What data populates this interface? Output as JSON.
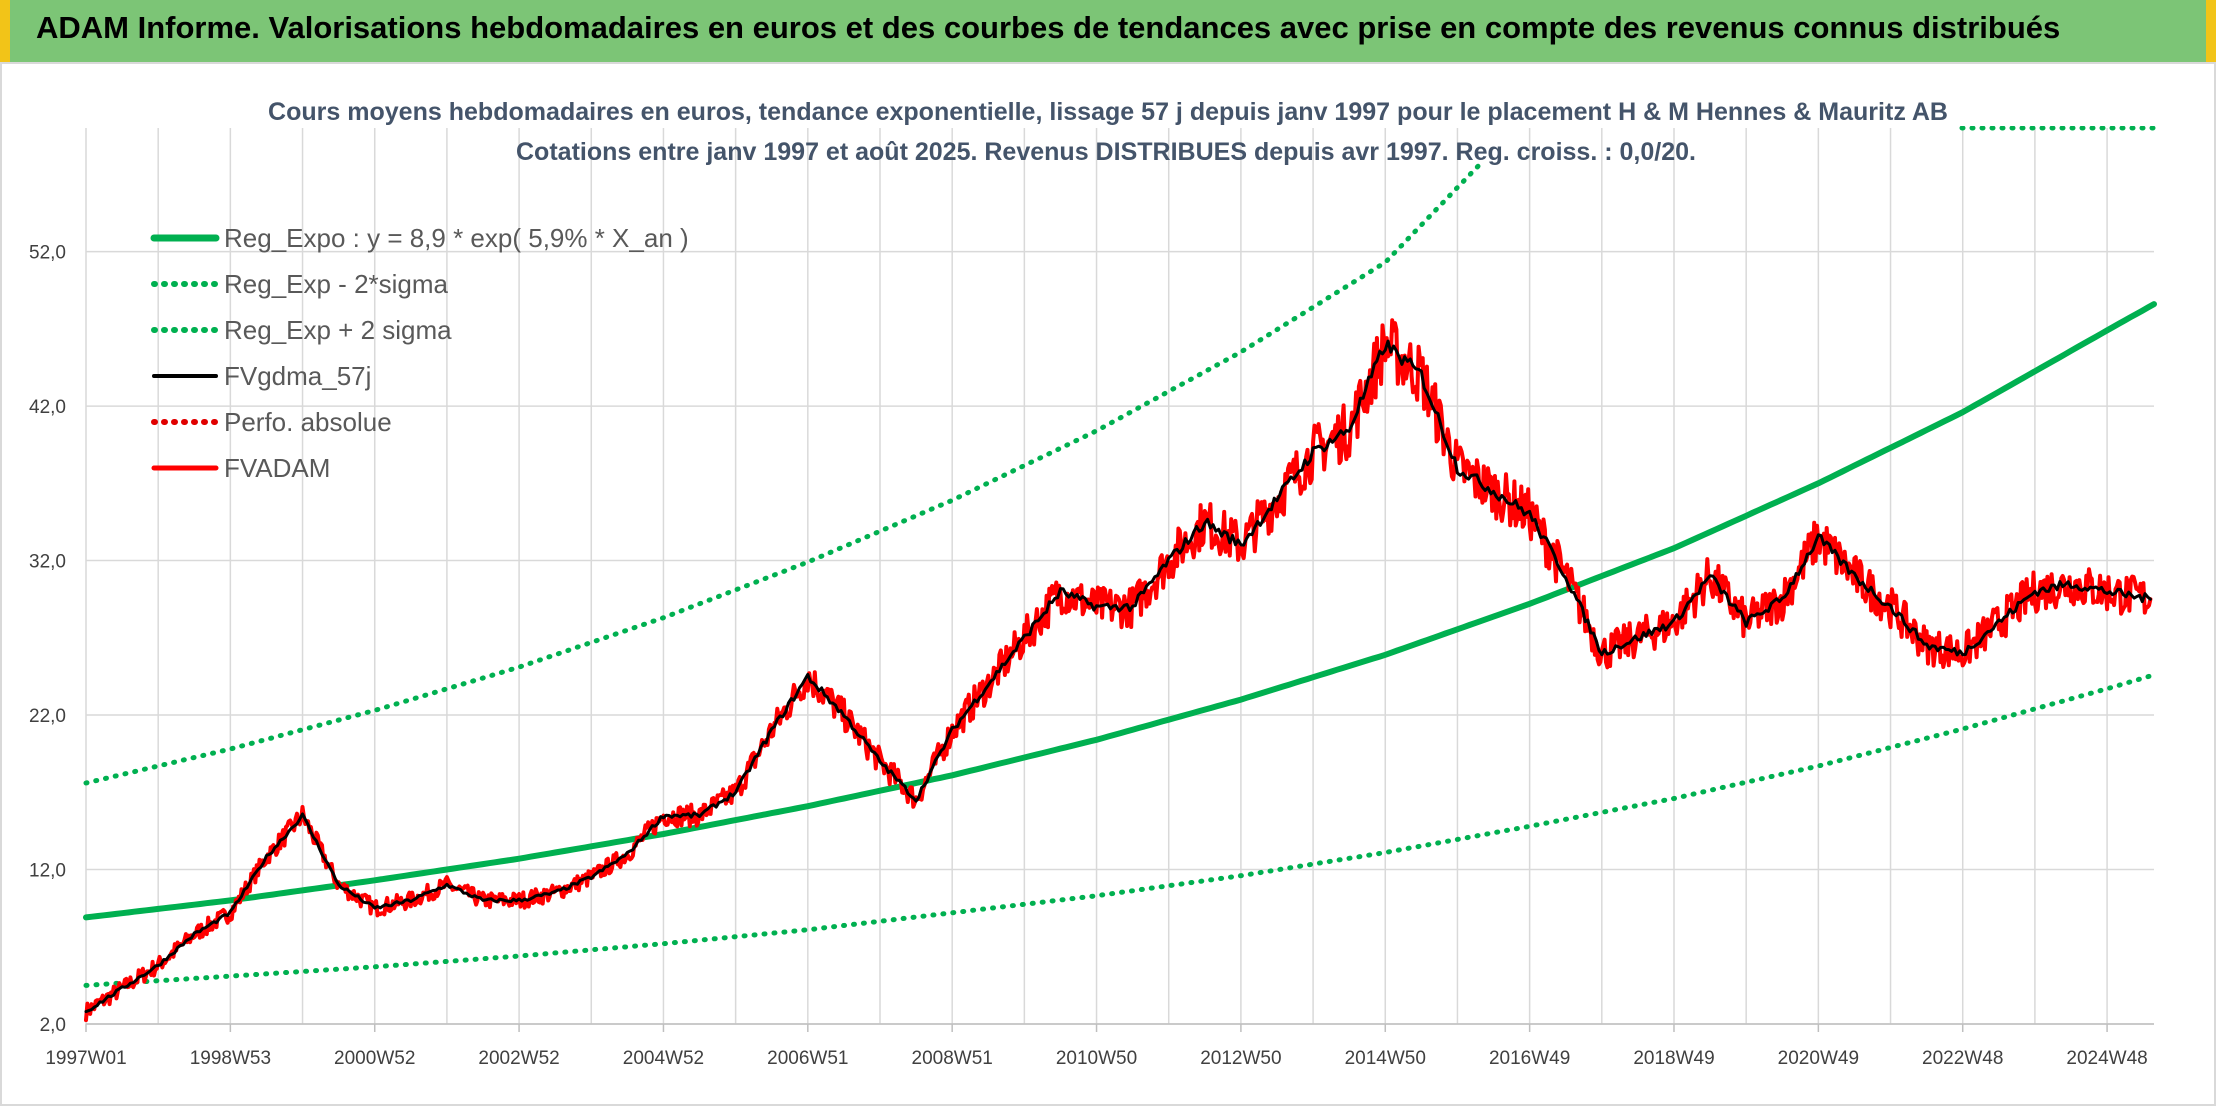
{
  "header": {
    "title": "ADAM Informe. Valorisations hebdomadaires en euros et des courbes de tendances avec prise en compte des revenus connus distribués",
    "background_color": "#7cc576",
    "edge_color": "#f2c418"
  },
  "chart_data": {
    "type": "line",
    "title": "Cours moyens hebdomadaires en euros, tendance exponentielle, lissage 57 j depuis janv 1997 pour le placement H & M Hennes & Mauritz AB",
    "subtitle": "Cotations entre janv 1997 et août 2025. Revenus DISTRIBUES depuis avr 1997. Reg. croiss. : 0,0/20.",
    "xlabel": "",
    "ylabel": "",
    "x_range": [
      1997.0,
      2025.65
    ],
    "ylim": [
      2,
      60
    ],
    "y_ticks": [
      "2,0",
      "12,0",
      "22,0",
      "32,0",
      "42,0",
      "52,0"
    ],
    "x_ticks": [
      {
        "label": "1997W01",
        "x": 1997.0
      },
      {
        "label": "1998W53",
        "x": 1999.0
      },
      {
        "label": "2000W52",
        "x": 2001.0
      },
      {
        "label": "2002W52",
        "x": 2003.0
      },
      {
        "label": "2004W52",
        "x": 2005.0
      },
      {
        "label": "2006W51",
        "x": 2007.0
      },
      {
        "label": "2008W51",
        "x": 2009.0
      },
      {
        "label": "2010W50",
        "x": 2011.0
      },
      {
        "label": "2012W50",
        "x": 2013.0
      },
      {
        "label": "2014W50",
        "x": 2015.0
      },
      {
        "label": "2016W49",
        "x": 2017.0
      },
      {
        "label": "2018W49",
        "x": 2019.0
      },
      {
        "label": "2020W49",
        "x": 2021.0
      },
      {
        "label": "2022W48",
        "x": 2023.0
      },
      {
        "label": "2024W48",
        "x": 2025.0
      }
    ],
    "grid": true,
    "legend_position": "top-left",
    "series": [
      {
        "name": "Reg_Expo : y = 8,9 * exp( 5,9% *  X_an )",
        "color": "#00b050",
        "style": "solid-thick",
        "x": [
          1997.0,
          1999.0,
          2001.0,
          2003.0,
          2005.0,
          2007.0,
          2009.0,
          2011.0,
          2013.0,
          2015.0,
          2017.0,
          2019.0,
          2021.0,
          2023.0,
          2025.0,
          2025.65
        ],
        "y": [
          8.9,
          10.0,
          11.3,
          12.7,
          14.3,
          16.1,
          18.1,
          20.4,
          23.0,
          25.9,
          29.2,
          32.8,
          37.0,
          41.6,
          46.9,
          48.6
        ]
      },
      {
        "name": "Reg_Exp - 2*sigma",
        "color": "#00b050",
        "style": "dotted",
        "x": [
          1997.0,
          1999.0,
          2001.0,
          2003.0,
          2005.0,
          2007.0,
          2009.0,
          2011.0,
          2013.0,
          2015.0,
          2017.0,
          2019.0,
          2021.0,
          2023.0,
          2025.0,
          2025.65
        ],
        "y": [
          4.5,
          5.1,
          5.7,
          6.4,
          7.2,
          8.1,
          9.2,
          10.3,
          11.6,
          13.1,
          14.8,
          16.6,
          18.7,
          21.1,
          23.7,
          24.6
        ]
      },
      {
        "name": "Reg_Exp + 2 sigma",
        "color": "#00b050",
        "style": "dotted",
        "x": [
          1997.0,
          1999.0,
          2001.0,
          2003.0,
          2005.0,
          2007.0,
          2009.0,
          2011.0,
          2013.0,
          2015.0,
          2016.3
        ],
        "y": [
          17.6,
          19.8,
          22.3,
          25.1,
          28.3,
          31.9,
          35.9,
          40.4,
          45.5,
          51.3,
          57.6
        ]
      },
      {
        "name": "FVgdma_57j",
        "color": "#000000",
        "style": "solid",
        "x": [
          1997.0,
          1997.5,
          1998.0,
          1998.5,
          1999.0,
          1999.5,
          2000.0,
          2000.5,
          2001.0,
          2001.5,
          2002.0,
          2002.5,
          2003.0,
          2003.5,
          2004.0,
          2004.5,
          2005.0,
          2005.5,
          2006.0,
          2006.5,
          2007.0,
          2007.5,
          2008.0,
          2008.5,
          2009.0,
          2009.5,
          2010.0,
          2010.5,
          2011.0,
          2011.5,
          2012.0,
          2012.5,
          2013.0,
          2013.5,
          2014.0,
          2014.5,
          2015.0,
          2015.5,
          2016.0,
          2016.5,
          2017.0,
          2017.5,
          2018.0,
          2018.5,
          2019.0,
          2019.5,
          2020.0,
          2020.5,
          2021.0,
          2021.5,
          2022.0,
          2022.5,
          2023.0,
          2023.5,
          2024.0,
          2024.5,
          2025.0,
          2025.6
        ],
        "y": [
          2.8,
          4.3,
          5.8,
          7.8,
          9.2,
          12.8,
          15.5,
          11.0,
          9.5,
          10.0,
          11.0,
          10.0,
          10.0,
          10.5,
          11.5,
          13.0,
          15.5,
          15.5,
          17.0,
          21.0,
          24.5,
          22.0,
          19.0,
          16.5,
          21.0,
          24.0,
          27.0,
          30.0,
          29.0,
          29.0,
          32.0,
          34.5,
          33.0,
          36.0,
          39.0,
          40.5,
          46.0,
          44.0,
          38.0,
          36.5,
          35.0,
          31.0,
          26.0,
          27.0,
          28.0,
          31.0,
          28.0,
          29.5,
          33.5,
          31.0,
          29.0,
          26.5,
          26.0,
          28.0,
          30.0,
          30.5,
          30.0,
          29.5
        ]
      },
      {
        "name": "Perfo. absolue",
        "color": "#e00000",
        "style": "dotted",
        "x": [],
        "y": []
      },
      {
        "name": "FVADAM",
        "color": "#ff0000",
        "style": "solid-noisy",
        "x": [
          1997.0,
          1997.5,
          1998.0,
          1998.5,
          1999.0,
          1999.5,
          2000.0,
          2000.5,
          2001.0,
          2001.5,
          2002.0,
          2002.5,
          2003.0,
          2003.5,
          2004.0,
          2004.5,
          2005.0,
          2005.5,
          2006.0,
          2006.5,
          2007.0,
          2007.5,
          2008.0,
          2008.5,
          2009.0,
          2009.5,
          2010.0,
          2010.5,
          2011.0,
          2011.5,
          2012.0,
          2012.5,
          2013.0,
          2013.5,
          2014.0,
          2014.5,
          2015.0,
          2015.5,
          2016.0,
          2016.5,
          2017.0,
          2017.5,
          2018.0,
          2018.5,
          2019.0,
          2019.5,
          2020.0,
          2020.5,
          2021.0,
          2021.5,
          2022.0,
          2022.5,
          2023.0,
          2023.5,
          2024.0,
          2024.5,
          2025.0,
          2025.6
        ],
        "y": [
          2.8,
          4.3,
          5.8,
          7.8,
          9.2,
          12.8,
          15.5,
          11.0,
          9.5,
          10.0,
          11.0,
          10.0,
          10.0,
          10.5,
          11.5,
          13.0,
          15.5,
          15.5,
          17.0,
          21.0,
          24.5,
          22.0,
          19.0,
          16.5,
          21.0,
          24.0,
          27.0,
          30.0,
          29.0,
          29.0,
          32.0,
          34.5,
          33.0,
          36.0,
          39.0,
          40.5,
          46.0,
          44.0,
          38.0,
          36.5,
          35.0,
          31.0,
          26.0,
          27.0,
          28.0,
          31.0,
          28.0,
          29.5,
          33.5,
          31.0,
          29.0,
          26.5,
          26.0,
          28.0,
          30.0,
          30.5,
          30.0,
          29.5
        ]
      }
    ]
  }
}
